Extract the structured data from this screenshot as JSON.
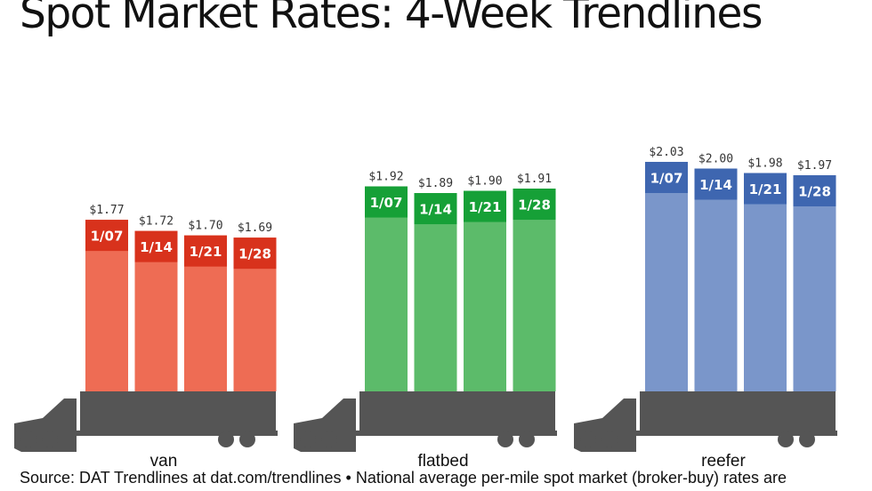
{
  "title": "Spot Market Rates: 4-Week Trendlines",
  "footer": "Source: DAT Trendlines at dat.com/trendlines • National average per-mile spot market (broker-buy) rates are",
  "chart_data": {
    "type": "bar",
    "unit": "$",
    "categories": [
      "1/07",
      "1/14",
      "1/21",
      "1/28"
    ],
    "groups": [
      {
        "name": "van",
        "values": [
          1.77,
          1.72,
          1.7,
          1.69
        ],
        "labels": [
          "$1.77",
          "$1.72",
          "$1.70",
          "$1.69"
        ],
        "bar_color": "#ee6c54",
        "cap_color": "#d8321c"
      },
      {
        "name": "flatbed",
        "values": [
          1.92,
          1.89,
          1.9,
          1.91
        ],
        "labels": [
          "$1.92",
          "$1.89",
          "$1.90",
          "$1.91"
        ],
        "bar_color": "#5cbb6a",
        "cap_color": "#16a037"
      },
      {
        "name": "reefer",
        "values": [
          2.03,
          2.0,
          1.98,
          1.97
        ],
        "labels": [
          "$2.03",
          "$2.00",
          "$1.98",
          "$1.97"
        ],
        "bar_color": "#7a96ca",
        "cap_color": "#3e66b0"
      }
    ],
    "truck_color": "#555555"
  }
}
